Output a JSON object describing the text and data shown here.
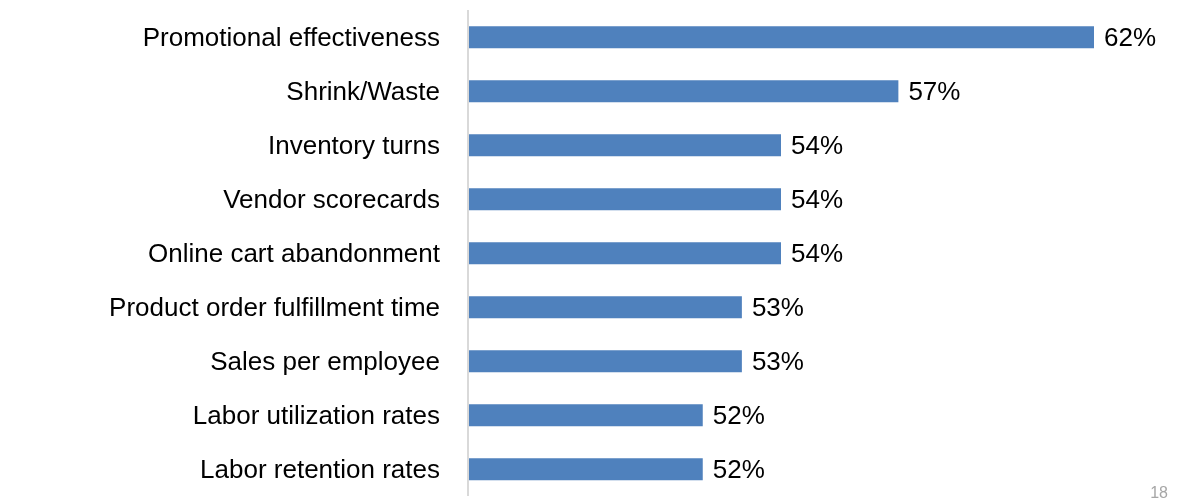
{
  "chart_data": {
    "type": "bar",
    "orientation": "horizontal",
    "categories": [
      "Promotional effectiveness",
      "Shrink/Waste",
      "Inventory turns",
      "Vendor scorecards",
      "Online cart abandonment",
      "Product order fulfillment time",
      "Sales per employee",
      "Labor utilization rates",
      "Labor retention rates"
    ],
    "values": [
      62,
      57,
      54,
      54,
      54,
      53,
      53,
      52,
      52
    ],
    "value_labels": [
      "62%",
      "57%",
      "54%",
      "54%",
      "54%",
      "53%",
      "53%",
      "52%",
      "52%"
    ],
    "color": "#4f81bd",
    "xlim": [
      46,
      62
    ],
    "tick_labels": "y",
    "annotations": [
      "18"
    ]
  }
}
